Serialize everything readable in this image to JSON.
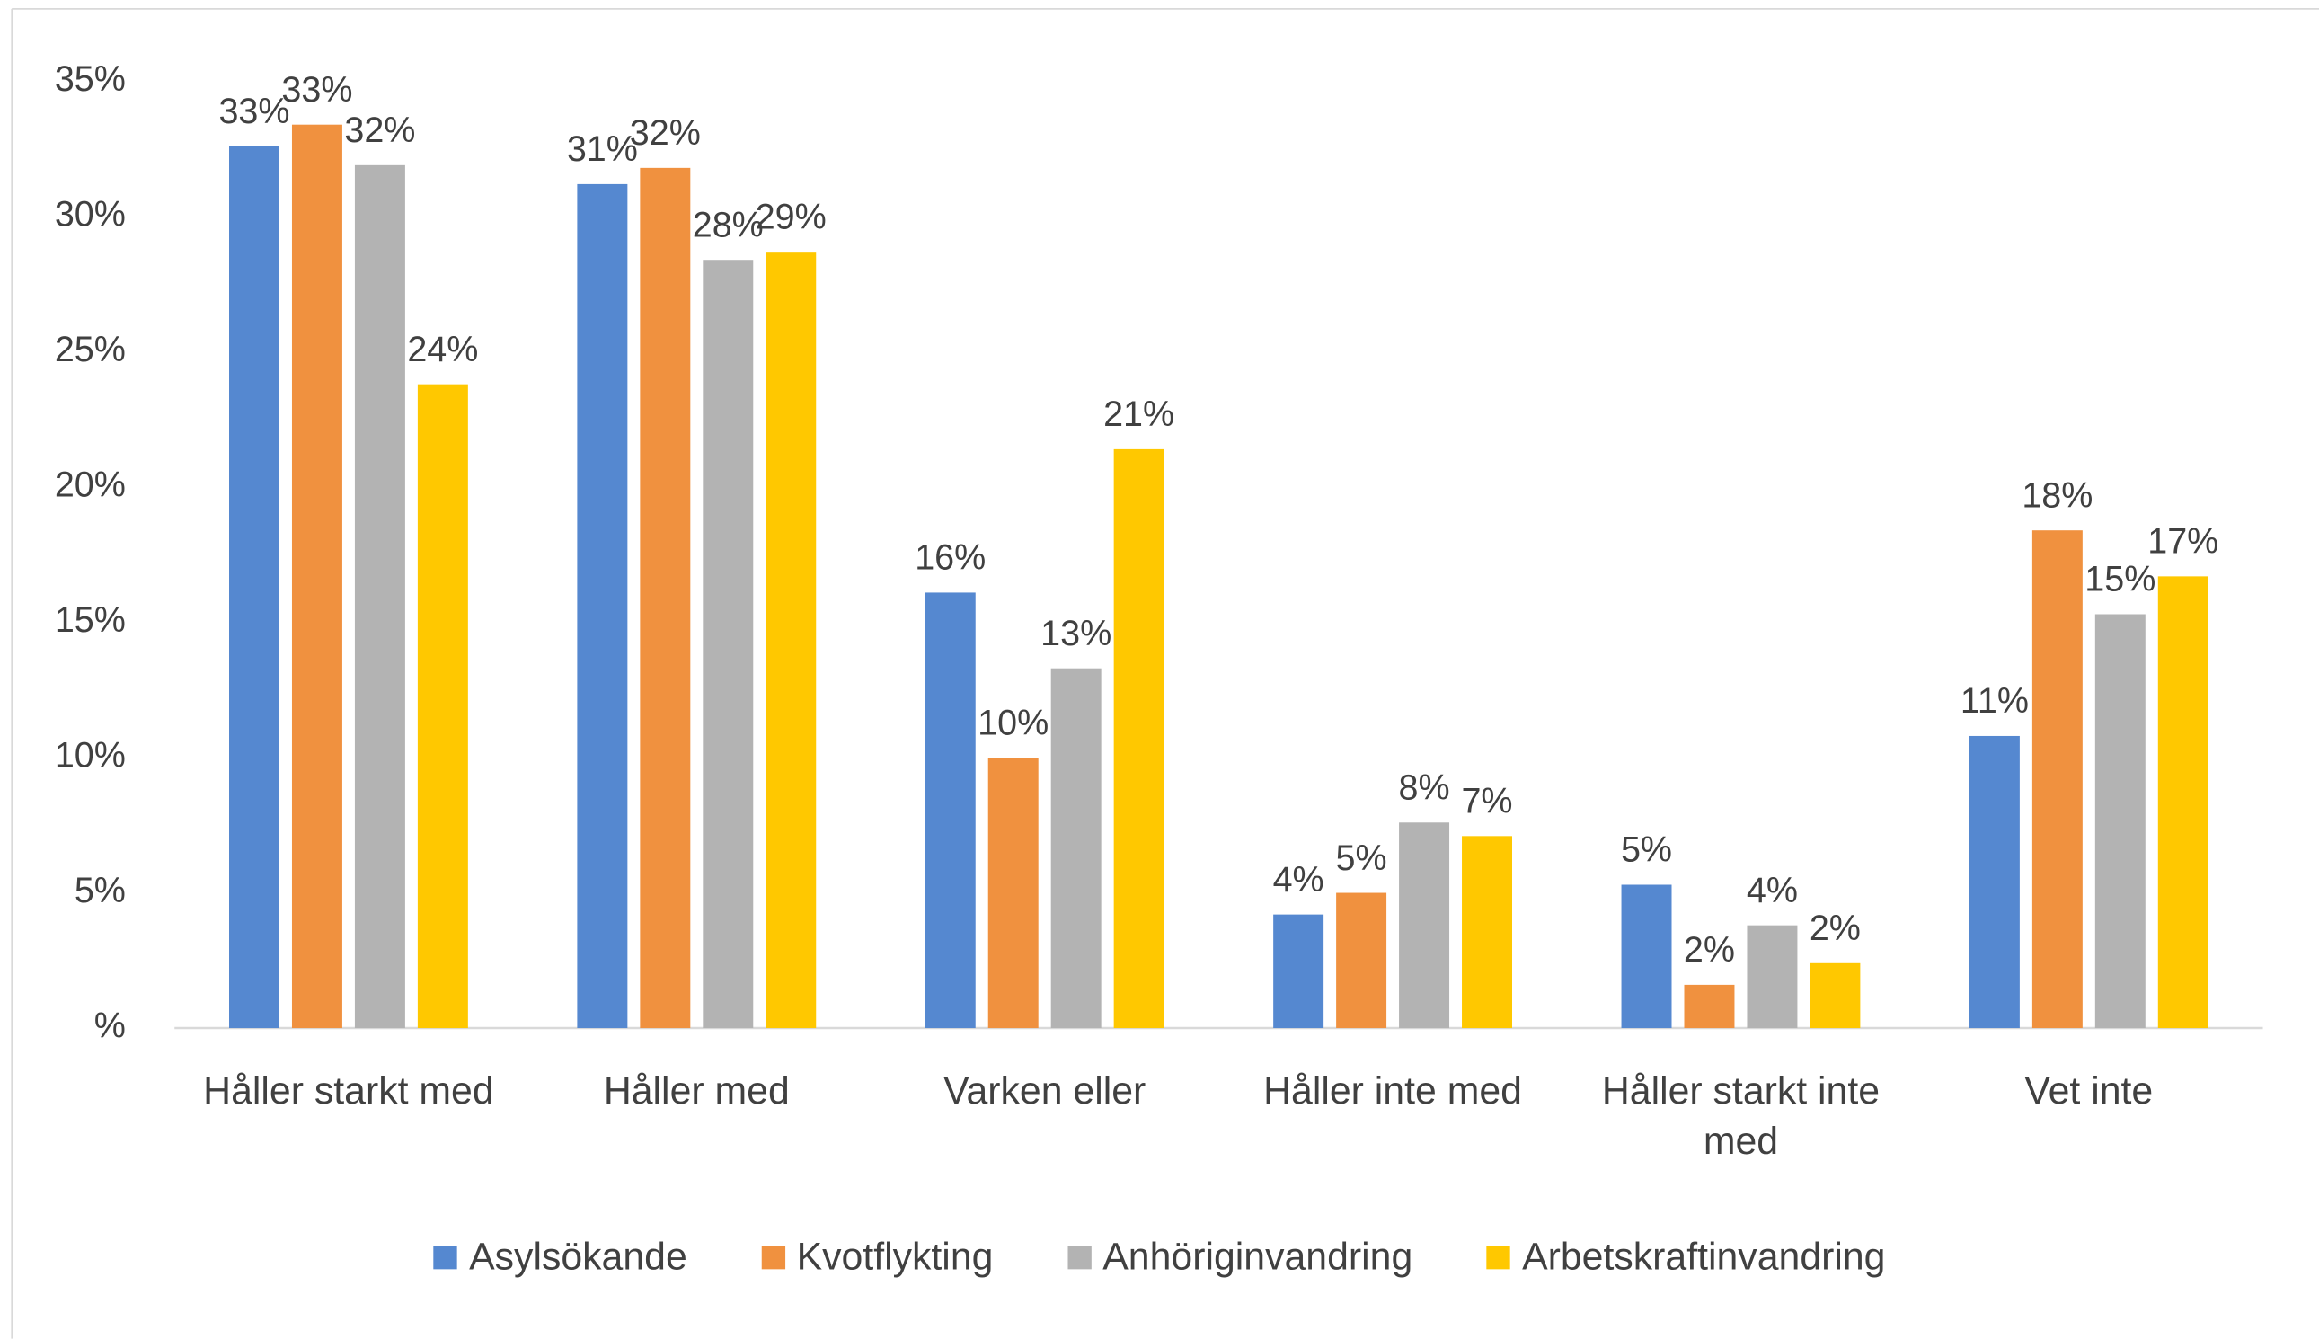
{
  "chart_data": {
    "type": "bar",
    "categories": [
      "Håller starkt med",
      "Håller med",
      "Varken eller",
      "Håller inte med",
      "Håller starkt inte med",
      "Vet inte"
    ],
    "series": [
      {
        "name": "Asylsökande",
        "color": "#5588d0",
        "values": [
          32.6,
          31.2,
          16.1,
          4.2,
          5.3,
          10.8
        ],
        "value_labels": [
          "33%",
          "31%",
          "16%",
          "4%",
          "5%",
          "11%"
        ]
      },
      {
        "name": "Kvotflykting",
        "color": "#f0913f",
        "values": [
          33.4,
          31.8,
          10.0,
          5.0,
          1.6,
          18.4
        ],
        "value_labels": [
          "33%",
          "32%",
          "10%",
          "5%",
          "2%",
          "18%"
        ]
      },
      {
        "name": "Anhöriginvandring",
        "color": "#b3b3b3",
        "values": [
          31.9,
          28.4,
          13.3,
          7.6,
          3.8,
          15.3
        ],
        "value_labels": [
          "32%",
          "28%",
          "13%",
          "8%",
          "4%",
          "15%"
        ]
      },
      {
        "name": "Arbetskraftinvandring",
        "color": "#ffc800",
        "values": [
          23.8,
          28.7,
          21.4,
          7.1,
          2.4,
          16.7
        ],
        "value_labels": [
          "24%",
          "29%",
          "21%",
          "7%",
          "2%",
          "17%"
        ]
      }
    ],
    "ylim": [
      0,
      35
    ],
    "yticks": [
      {
        "value": 0,
        "label": "%"
      },
      {
        "value": 5,
        "label": "5%"
      },
      {
        "value": 10,
        "label": "10%"
      },
      {
        "value": 15,
        "label": "15%"
      },
      {
        "value": 20,
        "label": "20%"
      },
      {
        "value": 25,
        "label": "25%"
      },
      {
        "value": 30,
        "label": "30%"
      },
      {
        "value": 35,
        "label": "35%"
      }
    ],
    "grid": false,
    "legend": "bottom"
  }
}
